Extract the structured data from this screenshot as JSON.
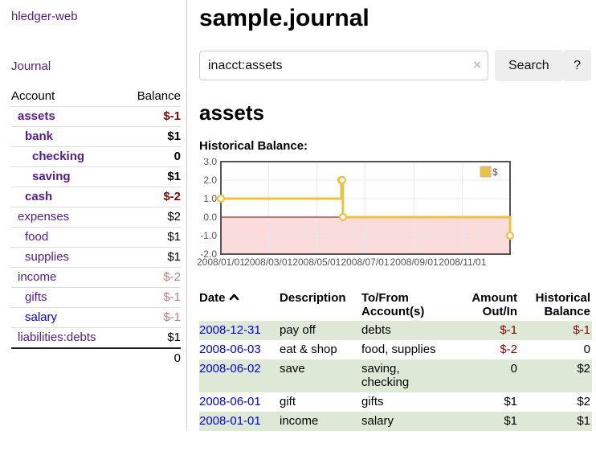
{
  "app": {
    "brand": "hledger-web",
    "nav_journal": "Journal"
  },
  "sidebar": {
    "headers": {
      "account": "Account",
      "balance": "Balance"
    },
    "accounts": [
      {
        "name": "assets",
        "balance": "$-1"
      },
      {
        "name": "bank",
        "balance": "$1"
      },
      {
        "name": "checking",
        "balance": "0"
      },
      {
        "name": "saving",
        "balance": "$1"
      },
      {
        "name": "cash",
        "balance": "$-2"
      },
      {
        "name": "expenses",
        "balance": "$2"
      },
      {
        "name": "food",
        "balance": "$1"
      },
      {
        "name": "supplies",
        "balance": "$1"
      },
      {
        "name": "income",
        "balance": "$-2"
      },
      {
        "name": "gifts",
        "balance": "$-1"
      },
      {
        "name": "salary",
        "balance": "$-1"
      },
      {
        "name": "liabilities:debts",
        "balance": "$1"
      }
    ],
    "total": "0"
  },
  "header": {
    "title": "sample.journal"
  },
  "search": {
    "value": "inacct:assets",
    "clear_icon": "×",
    "search_button": "Search",
    "help_button": "?"
  },
  "account_page": {
    "heading": "assets",
    "chart_label": "Historical Balance:"
  },
  "chart_data": {
    "type": "line",
    "title": "Historical Balance:",
    "legend": "$",
    "legend_position": "top-right",
    "series": [
      {
        "name": "$",
        "color": "#edc240",
        "step": true,
        "points": [
          [
            "2008-01-01",
            1
          ],
          [
            "2008-06-01",
            2
          ],
          [
            "2008-06-02",
            2
          ],
          [
            "2008-06-03",
            0
          ],
          [
            "2008-12-31",
            -1
          ]
        ]
      }
    ],
    "xticks": [
      "2008/01/01",
      "2008/03/01",
      "2008/05/01",
      "2008/07/01",
      "2008/09/01",
      "2008/11/01"
    ],
    "yticks": [
      "3.0",
      "2.0",
      "1.0",
      "0.0",
      "-1.0",
      "-2.0"
    ],
    "ylim": [
      -2,
      3
    ],
    "x_range_days": 365,
    "grid": true,
    "negative_region_color": "#fadcdc",
    "zero_line_color": "#8b0000",
    "border_color": "#545454"
  },
  "register": {
    "columns": [
      "Date",
      "Description",
      "To/From Account(s)",
      "Amount Out/In",
      "Historical Balance"
    ],
    "rows": [
      {
        "date": "2008-12-31",
        "description": "pay off",
        "accounts": "debts",
        "amount": "$-1",
        "balance": "$-1"
      },
      {
        "date": "2008-06-03",
        "description": "eat & shop",
        "accounts": "food, supplies",
        "amount": "$-2",
        "balance": "0"
      },
      {
        "date": "2008-06-02",
        "description": "save",
        "accounts": "saving,\nchecking",
        "amount": "0",
        "balance": "$2"
      },
      {
        "date": "2008-06-01",
        "description": "gift",
        "accounts": "gifts",
        "amount": "$1",
        "balance": "$2"
      },
      {
        "date": "2008-01-01",
        "description": "income",
        "accounts": "salary",
        "amount": "$1",
        "balance": "$1"
      }
    ]
  }
}
